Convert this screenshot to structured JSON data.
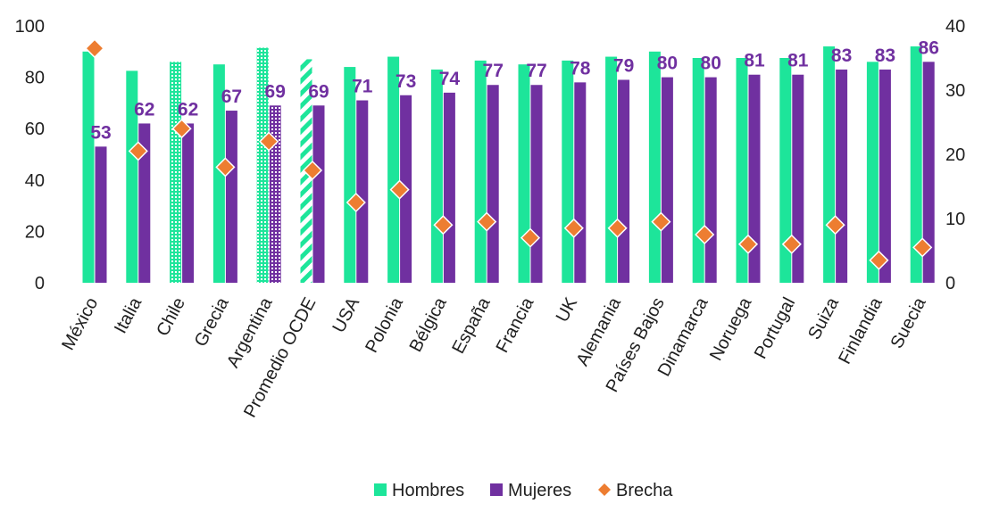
{
  "chart_data": {
    "type": "bar",
    "categories": [
      "México",
      "Italia",
      "Chile",
      "Grecia",
      "Argentina",
      "Promedio OCDE",
      "USA",
      "Polonia",
      "Bélgica",
      "España",
      "Francia",
      "UK",
      "Alemania",
      "Países Bajos",
      "Dinamarca",
      "Noruega",
      "Portugal",
      "Suiza",
      "Finlandia",
      "Suecia"
    ],
    "series": [
      {
        "name": "Hombres",
        "axis": "left",
        "kind": "bar",
        "color": "#1de59a",
        "values": [
          90,
          82.5,
          86,
          85,
          91.5,
          87,
          84,
          88,
          83,
          86.5,
          85,
          86.5,
          88,
          90,
          87.5,
          87.5,
          87.5,
          92,
          86,
          92
        ],
        "patterned": [
          false,
          false,
          true,
          false,
          true,
          true,
          false,
          false,
          false,
          false,
          false,
          false,
          false,
          false,
          false,
          false,
          false,
          false,
          false,
          false
        ]
      },
      {
        "name": "Mujeres",
        "axis": "left",
        "kind": "bar",
        "color": "#7030a0",
        "values": [
          53,
          62,
          62,
          67,
          69,
          69,
          71,
          73,
          74,
          77,
          77,
          78,
          79,
          80,
          80,
          81,
          81,
          83,
          83,
          86
        ],
        "labels": [
          "53",
          "62",
          "62",
          "67",
          "69",
          "69",
          "71",
          "73",
          "74",
          "77",
          "77",
          "78",
          "79",
          "80",
          "80",
          "81",
          "81",
          "83",
          "83",
          "86"
        ],
        "patterned": [
          false,
          false,
          false,
          false,
          true,
          false,
          false,
          false,
          false,
          false,
          false,
          false,
          false,
          false,
          false,
          false,
          false,
          false,
          false,
          false
        ]
      },
      {
        "name": "Brecha",
        "axis": "right",
        "kind": "marker",
        "color": "#ed7d31",
        "values": [
          36.5,
          20.5,
          24,
          18,
          22,
          17.5,
          12.5,
          14.5,
          9,
          9.5,
          7,
          8.5,
          8.5,
          9.5,
          7.5,
          6,
          6,
          9,
          3.5,
          5.5
        ]
      }
    ],
    "y_left": {
      "ticks": [
        "0",
        "20",
        "40",
        "60",
        "80",
        "100"
      ],
      "range": [
        0,
        100
      ]
    },
    "y_right": {
      "ticks": [
        "0",
        "10",
        "20",
        "30",
        "40"
      ],
      "range": [
        0,
        40
      ]
    },
    "grid": false,
    "legend_position": "bottom"
  },
  "colors": {
    "hombres": "#1de59a",
    "mujeres": "#7030a0",
    "brecha": "#ed7d31",
    "label": "#7030a0"
  }
}
